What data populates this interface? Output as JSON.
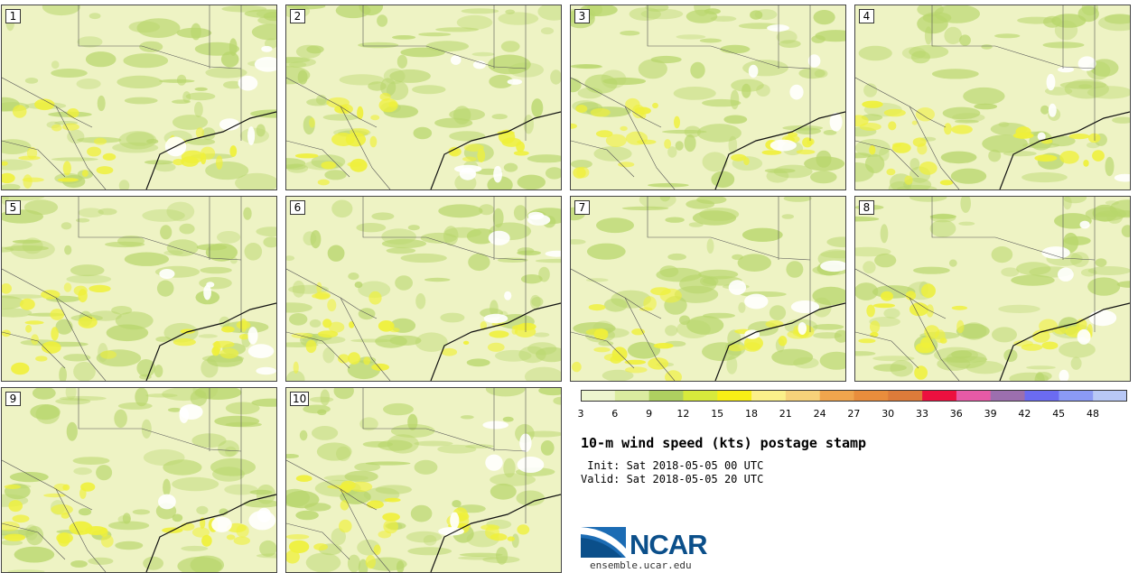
{
  "panels": [
    {
      "label": "1"
    },
    {
      "label": "2"
    },
    {
      "label": "3"
    },
    {
      "label": "4"
    },
    {
      "label": "5"
    },
    {
      "label": "6"
    },
    {
      "label": "7"
    },
    {
      "label": "8"
    },
    {
      "label": "9"
    },
    {
      "label": "10"
    }
  ],
  "legend": {
    "ticks": [
      "3",
      "6",
      "9",
      "12",
      "15",
      "18",
      "21",
      "24",
      "27",
      "30",
      "33",
      "36",
      "39",
      "42",
      "45",
      "48"
    ],
    "colors": [
      "#eef5cf",
      "#dbeca0",
      "#aed060",
      "#d7ea3c",
      "#f8ef16",
      "#fbf08a",
      "#f7d27a",
      "#f0a54d",
      "#e98d3c",
      "#dd7b3a",
      "#ec103f",
      "#e65aa6",
      "#9c6fae",
      "#6b6bf1",
      "#8b9af5",
      "#b8c8f6"
    ]
  },
  "title": "10-m wind speed (kts) postage stamp",
  "init": " Init: Sat 2018-05-05 00 UTC",
  "valid": "Valid: Sat 2018-05-05 20 UTC",
  "logo": {
    "text": "NCAR",
    "url_text": "ensemble.ucar.edu"
  },
  "colors": {
    "map_base": "#eef3c4",
    "map_green": "#b8d66c",
    "map_yellow": "#eff03a",
    "map_white": "#ffffff"
  }
}
